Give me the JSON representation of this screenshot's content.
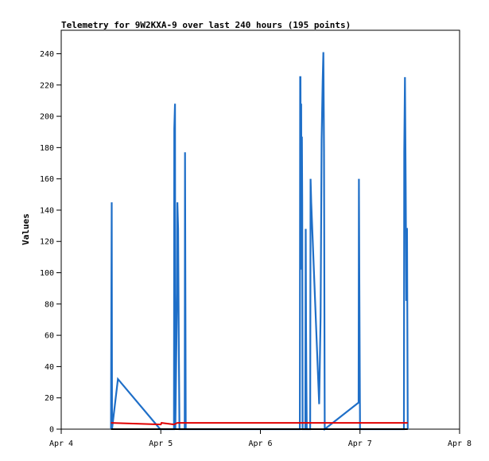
{
  "chart_data": {
    "type": "line",
    "title": "Telemetry for 9W2KXA-9 over last 240 hours (195 points)",
    "xlabel": "",
    "ylabel": "Values",
    "xlim": [
      "Apr 4",
      "Apr 8"
    ],
    "ylim": [
      0,
      255
    ],
    "x_ticks": [
      "Apr 4",
      "Apr 5",
      "Apr 6",
      "Apr 7",
      "Apr 8"
    ],
    "y_ticks": [
      0,
      20,
      40,
      60,
      80,
      100,
      120,
      140,
      160,
      180,
      200,
      220,
      240
    ],
    "grid": false,
    "legend": "none",
    "series": [
      {
        "color": "#1f6fc8",
        "points": [
          [
            "Apr 4 12:00",
            0
          ],
          [
            "Apr 4 12:05",
            88
          ],
          [
            "Apr 4 12:10",
            145
          ],
          [
            "Apr 4 12:15",
            0
          ],
          [
            "Apr 4 13:40",
            32
          ],
          [
            "Apr 4 23:50",
            0
          ],
          [
            "Apr 5 03:10",
            0
          ],
          [
            "Apr 5 03:15",
            192
          ],
          [
            "Apr 5 03:25",
            208
          ],
          [
            "Apr 5 03:30",
            0
          ],
          [
            "Apr 5 03:55",
            87
          ],
          [
            "Apr 5 04:00",
            145
          ],
          [
            "Apr 5 04:10",
            128
          ],
          [
            "Apr 5 04:20",
            53
          ],
          [
            "Apr 5 04:30",
            0
          ],
          [
            "Apr 5 05:45",
            0
          ],
          [
            "Apr 5 05:50",
            177
          ],
          [
            "Apr 5 06:00",
            0
          ],
          [
            "Apr 6 09:30",
            0
          ],
          [
            "Apr 6 09:35",
            225
          ],
          [
            "Apr 6 09:40",
            225
          ],
          [
            "Apr 6 09:45",
            110
          ],
          [
            "Apr 6 09:50",
            208
          ],
          [
            "Apr 6 09:55",
            102
          ],
          [
            "Apr 6 10:00",
            187
          ],
          [
            "Apr 6 10:05",
            145
          ],
          [
            "Apr 6 10:10",
            0
          ],
          [
            "Apr 6 10:50",
            0
          ],
          [
            "Apr 6 10:55",
            128
          ],
          [
            "Apr 6 11:00",
            65
          ],
          [
            "Apr 6 11:05",
            32
          ],
          [
            "Apr 6 11:10",
            0
          ],
          [
            "Apr 6 12:00",
            0
          ],
          [
            "Apr 6 12:05",
            160
          ],
          [
            "Apr 6 12:15",
            145
          ],
          [
            "Apr 6 14:10",
            16
          ],
          [
            "Apr 6 14:30",
            72
          ],
          [
            "Apr 6 14:45",
            185
          ],
          [
            "Apr 6 15:00",
            222
          ],
          [
            "Apr 6 15:10",
            241
          ],
          [
            "Apr 6 15:20",
            178
          ],
          [
            "Apr 6 15:30",
            0
          ],
          [
            "Apr 6 23:40",
            17
          ],
          [
            "Apr 6 23:45",
            160
          ],
          [
            "Apr 6 23:50",
            97
          ],
          [
            "Apr 7 00:00",
            0
          ],
          [
            "Apr 7 10:35",
            0
          ],
          [
            "Apr 7 10:40",
            177
          ],
          [
            "Apr 7 10:50",
            225
          ],
          [
            "Apr 7 11:00",
            158
          ],
          [
            "Apr 7 11:10",
            82
          ],
          [
            "Apr 7 11:15",
            128
          ],
          [
            "Apr 7 11:20",
            128
          ],
          [
            "Apr 7 11:30",
            0
          ]
        ]
      },
      {
        "color": "#e00000",
        "points": [
          [
            "Apr 4 12:00",
            4
          ],
          [
            "Apr 5 00:00",
            3
          ],
          [
            "Apr 5 00:10",
            4
          ],
          [
            "Apr 5 03:10",
            3
          ],
          [
            "Apr 5 04:00",
            4
          ],
          [
            "Apr 7 11:30",
            4
          ]
        ]
      },
      {
        "color": "#000000",
        "points": [
          [
            "Apr 4 12:00",
            0
          ],
          [
            "Apr 7 11:30",
            0
          ]
        ]
      }
    ]
  }
}
